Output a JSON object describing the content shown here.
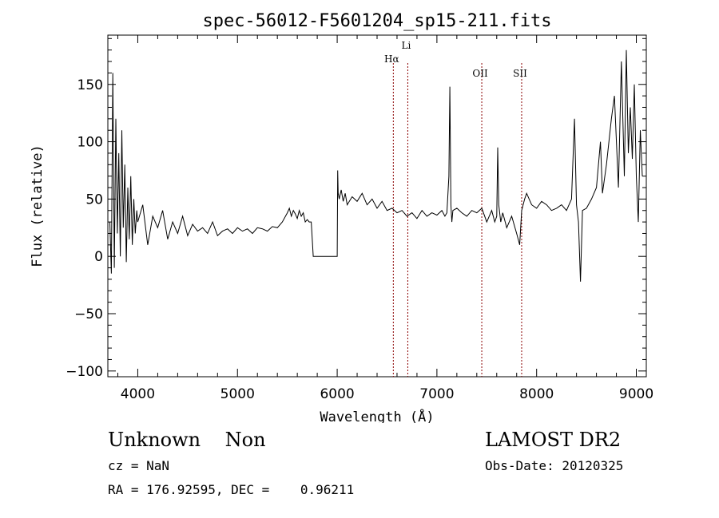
{
  "chart_data": {
    "type": "line",
    "title": "spec-56012-F5601204_sp15-211.fits",
    "xlabel": "Wavelength (Å)",
    "ylabel": "Flux (relative)",
    "xlim": [
      3700,
      9100
    ],
    "ylim": [
      -105,
      193
    ],
    "x_ticks": [
      4000,
      5000,
      6000,
      7000,
      8000,
      9000
    ],
    "x_tick_labels": [
      "4000",
      "5000",
      "6000",
      "7000",
      "8000",
      "9000"
    ],
    "y_ticks": [
      -100,
      -50,
      0,
      50,
      100,
      150
    ],
    "y_tick_labels": [
      "−100",
      "−50",
      "0",
      "50",
      "100",
      "150"
    ],
    "grid": false,
    "line_color": "#000000",
    "marker_color": "#8b0000",
    "lines": [
      {
        "label": "Hα",
        "x": 6563
      },
      {
        "label": "Li",
        "x": 6708
      },
      {
        "label": "OII",
        "x": 7450
      },
      {
        "label": "SII",
        "x": 7850
      }
    ],
    "series": [
      {
        "x": [
          3720,
          3735,
          3750,
          3765,
          3780,
          3795,
          3810,
          3825,
          3840,
          3855,
          3870,
          3885,
          3900,
          3915,
          3930,
          3945,
          3960,
          3975,
          3990,
          4000,
          4050,
          4100,
          4150,
          4200,
          4250,
          4300,
          4350,
          4400,
          4450,
          4500,
          4550,
          4600,
          4650,
          4700,
          4750,
          4800,
          4850,
          4900,
          4950,
          5000,
          5050,
          5100,
          5150,
          5200,
          5250,
          5300,
          5350,
          5400,
          5450,
          5500,
          5520,
          5540,
          5560,
          5580,
          5600,
          5620,
          5640,
          5660,
          5680,
          5700,
          5720,
          5740,
          5760,
          5780,
          5800,
          5900,
          6000,
          6005,
          6010,
          6020,
          6040,
          6060,
          6080,
          6100,
          6150,
          6200,
          6250,
          6300,
          6350,
          6400,
          6450,
          6500,
          6550,
          6600,
          6650,
          6700,
          6750,
          6800,
          6850,
          6900,
          6950,
          7000,
          7050,
          7080,
          7100,
          7120,
          7130,
          7140,
          7150,
          7160,
          7200,
          7250,
          7300,
          7350,
          7400,
          7450,
          7500,
          7550,
          7580,
          7600,
          7610,
          7620,
          7640,
          7660,
          7700,
          7750,
          7800,
          7830,
          7850,
          7880,
          7900,
          7950,
          8000,
          8050,
          8100,
          8150,
          8200,
          8250,
          8300,
          8350,
          8380,
          8400,
          8420,
          8440,
          8460,
          8500,
          8550,
          8600,
          8640,
          8660,
          8700,
          8750,
          8780,
          8800,
          8820,
          8850,
          8880,
          8900,
          8920,
          8940,
          8960,
          8980,
          9000,
          9020,
          9040,
          9060
        ],
        "y": [
          30,
          -15,
          160,
          -10,
          120,
          20,
          90,
          0,
          110,
          25,
          80,
          -5,
          60,
          15,
          70,
          10,
          50,
          20,
          40,
          30,
          45,
          10,
          35,
          25,
          40,
          15,
          30,
          20,
          35,
          18,
          28,
          22,
          25,
          20,
          30,
          18,
          22,
          24,
          20,
          25,
          22,
          24,
          20,
          25,
          24,
          22,
          26,
          25,
          30,
          38,
          42,
          35,
          40,
          37,
          33,
          40,
          35,
          38,
          30,
          32,
          30,
          30,
          0,
          0,
          0,
          0,
          0,
          75,
          55,
          50,
          58,
          48,
          55,
          45,
          52,
          48,
          55,
          45,
          50,
          42,
          48,
          40,
          42,
          38,
          40,
          35,
          38,
          33,
          40,
          35,
          38,
          36,
          40,
          35,
          38,
          70,
          148,
          45,
          30,
          40,
          42,
          38,
          35,
          40,
          38,
          42,
          30,
          40,
          30,
          35,
          95,
          45,
          30,
          38,
          25,
          35,
          20,
          10,
          40,
          50,
          55,
          45,
          42,
          48,
          45,
          40,
          42,
          45,
          40,
          50,
          120,
          45,
          30,
          -22,
          40,
          42,
          50,
          60,
          100,
          55,
          80,
          120,
          140,
          100,
          60,
          170,
          70,
          180,
          90,
          130,
          85,
          150,
          70,
          30,
          110,
          70
        ]
      }
    ]
  },
  "info": {
    "object": "Unknown    Non",
    "cz": "cz = NaN",
    "coords": "RA = 176.92595, DEC =    0.96211",
    "survey": "LAMOST DR2",
    "obs_date": "Obs-Date: 20120325"
  }
}
